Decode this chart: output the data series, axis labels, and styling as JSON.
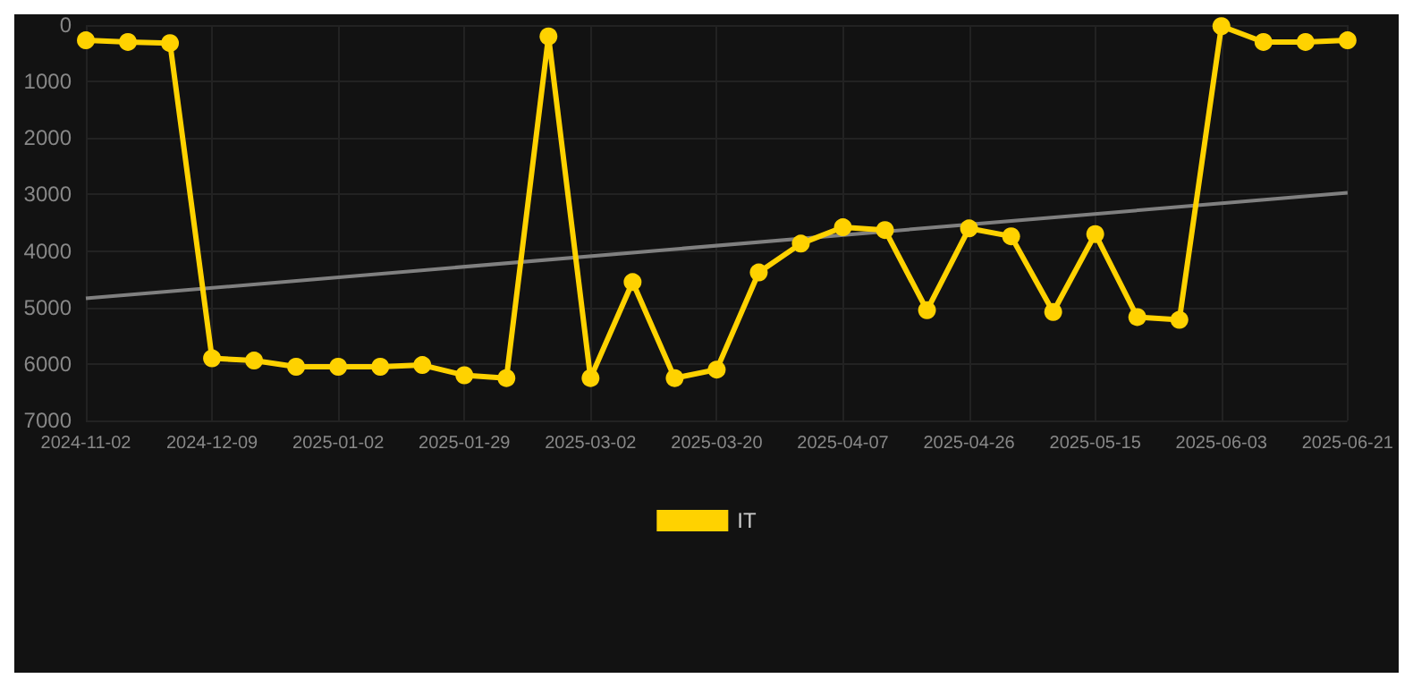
{
  "chart_data": {
    "type": "line",
    "categories": [
      "2024-11-02",
      null,
      null,
      "2024-12-09",
      null,
      null,
      "2025-01-02",
      null,
      null,
      "2025-01-29",
      null,
      null,
      "2025-03-02",
      null,
      null,
      "2025-03-20",
      null,
      null,
      "2025-04-07",
      null,
      null,
      "2025-04-26",
      null,
      null,
      "2025-05-15",
      null,
      null,
      "2025-06-03",
      null,
      null,
      "2025-06-21"
    ],
    "series": [
      {
        "name": "IT",
        "color": "#ffd200",
        "marker": "circle",
        "values": [
          270,
          300,
          320,
          5900,
          5940,
          6050,
          6050,
          6050,
          6020,
          6200,
          6250,
          200,
          6250,
          4550,
          6250,
          6100,
          4380,
          3870,
          3580,
          3630,
          5050,
          3600,
          3740,
          5080,
          3700,
          5170,
          5220,
          20,
          300,
          300,
          270
        ]
      },
      {
        "color": "#808080",
        "marker": "none",
        "values": [
          4840,
          null,
          null,
          null,
          null,
          null,
          null,
          null,
          null,
          null,
          null,
          null,
          null,
          null,
          null,
          null,
          null,
          null,
          null,
          null,
          null,
          null,
          null,
          null,
          null,
          null,
          null,
          null,
          null,
          null,
          2970
        ]
      }
    ],
    "ylim": [
      7000,
      0
    ],
    "yticks": [
      0,
      1000,
      2000,
      3000,
      4000,
      5000,
      6000,
      7000
    ],
    "grid": true,
    "legend": "bottom"
  }
}
